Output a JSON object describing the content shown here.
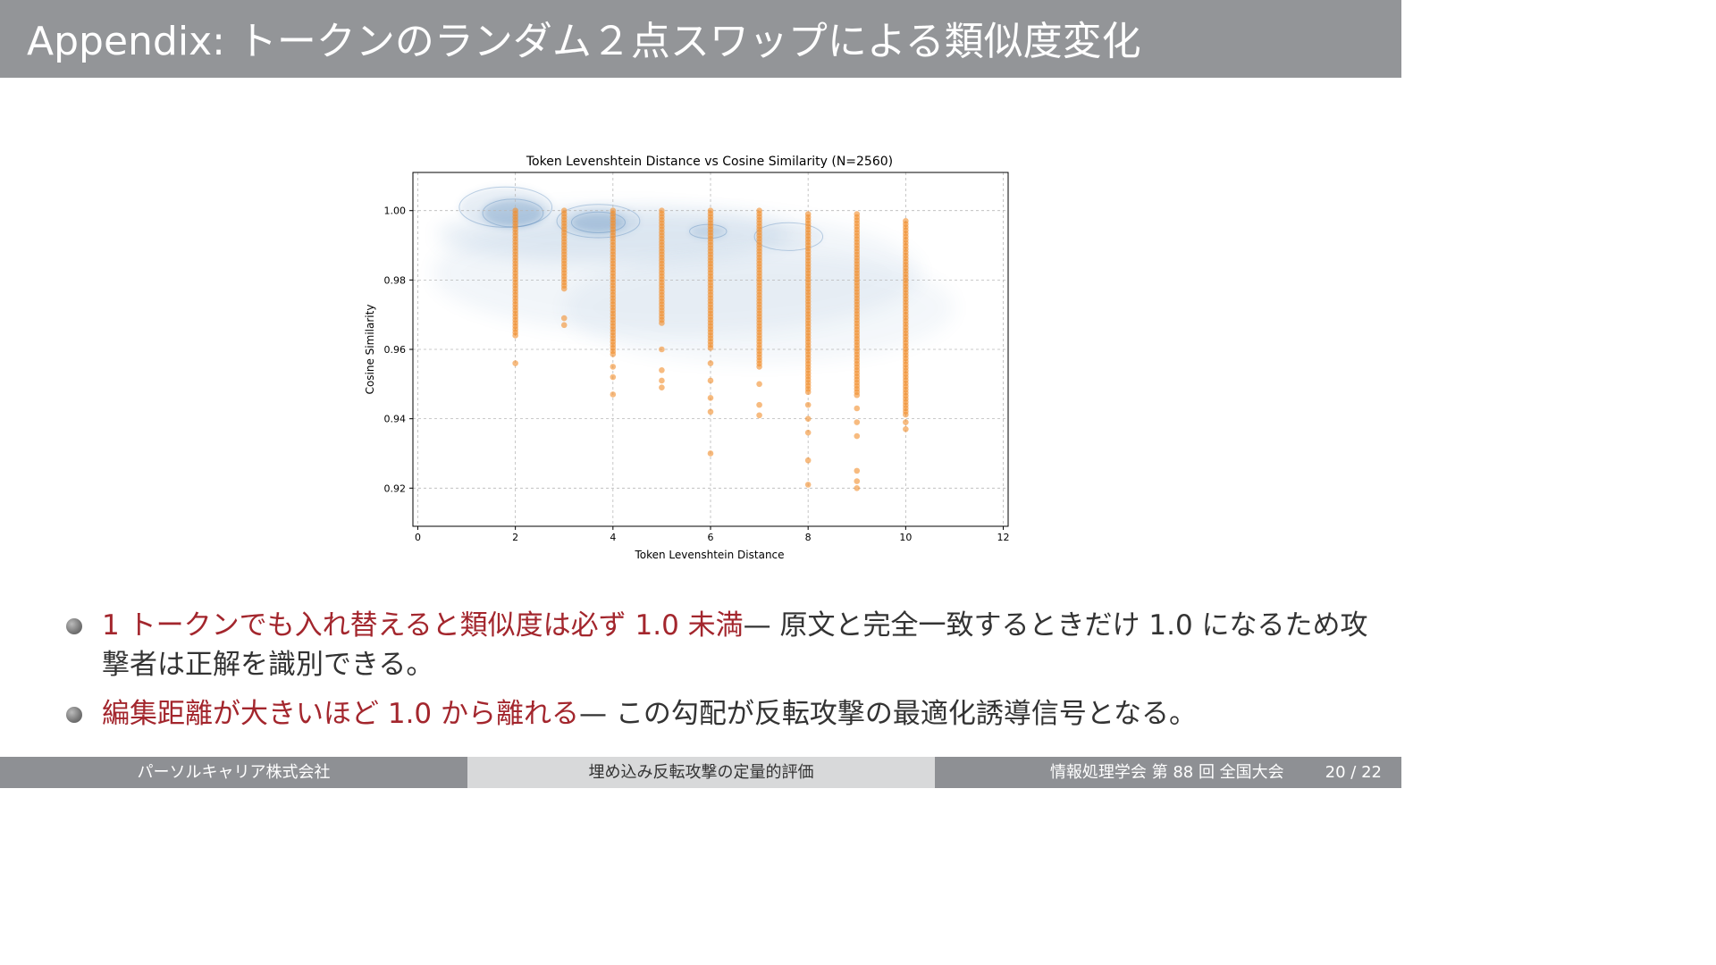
{
  "slide": {
    "title": "Appendix: トークンのランダム２点スワップによる類似度変化"
  },
  "bullets": [
    {
      "highlight": "1 トークンでも入れ替えると類似度は必ず 1.0 未満",
      "text": "— 原文と完全一致するときだけ 1.0 になるため攻撃者は正解を識別できる。"
    },
    {
      "highlight": "編集距離が大きいほど 1.0 から離れる",
      "text": "— この勾配が反転攻撃の最適化誘導信号となる。"
    }
  ],
  "footer": {
    "left": "パーソルキャリア株式会社",
    "center": "埋め込み反転攻撃の定量的評価",
    "right": "情報処理学会 第 88 回 全国大会",
    "page": "20 / 22"
  },
  "colors": {
    "title_bar": "#939598",
    "highlight": "#a3262d",
    "points": "#f28e2b",
    "kde": "#4a7fb5"
  },
  "chart_data": {
    "type": "scatter",
    "title": "Token Levenshtein Distance vs Cosine Similarity (N=2560)",
    "xlabel": "Token Levenshtein Distance",
    "ylabel": "Cosine Similarity",
    "xlim": [
      -0.1,
      12.1
    ],
    "ylim": [
      0.909,
      1.011
    ],
    "xticks": [
      0,
      2,
      4,
      6,
      8,
      10,
      12
    ],
    "yticks": [
      0.92,
      0.94,
      0.96,
      0.98,
      1.0
    ],
    "ytick_labels": [
      "0.92",
      "0.94",
      "0.96",
      "0.98",
      "1.00"
    ],
    "grid": true,
    "overlay": "kde density contours",
    "series": [
      {
        "points": [
          {
            "x": 2,
            "ymin": 0.964,
            "ymax": 1.0,
            "outliers": [
              0.956
            ]
          },
          {
            "x": 3,
            "ymin": 0.977,
            "ymax": 1.0,
            "outliers": [
              0.969,
              0.967
            ]
          },
          {
            "x": 4,
            "ymin": 0.958,
            "ymax": 1.0,
            "outliers": [
              0.955,
              0.952,
              0.947
            ]
          },
          {
            "x": 5,
            "ymin": 0.967,
            "ymax": 1.0,
            "outliers": [
              0.96,
              0.954,
              0.951,
              0.949
            ]
          },
          {
            "x": 6,
            "ymin": 0.96,
            "ymax": 1.0,
            "outliers": [
              0.956,
              0.951,
              0.946,
              0.942,
              0.93
            ]
          },
          {
            "x": 7,
            "ymin": 0.955,
            "ymax": 1.0,
            "outliers": [
              0.95,
              0.944,
              0.941
            ]
          },
          {
            "x": 8,
            "ymin": 0.947,
            "ymax": 0.999,
            "outliers": [
              0.944,
              0.94,
              0.936,
              0.928,
              0.921
            ]
          },
          {
            "x": 9,
            "ymin": 0.946,
            "ymax": 0.999,
            "outliers": [
              0.943,
              0.939,
              0.935,
              0.925,
              0.922,
              0.92
            ]
          },
          {
            "x": 10,
            "ymin": 0.941,
            "ymax": 0.997,
            "outliers": [
              0.939,
              0.937
            ]
          }
        ]
      }
    ]
  }
}
